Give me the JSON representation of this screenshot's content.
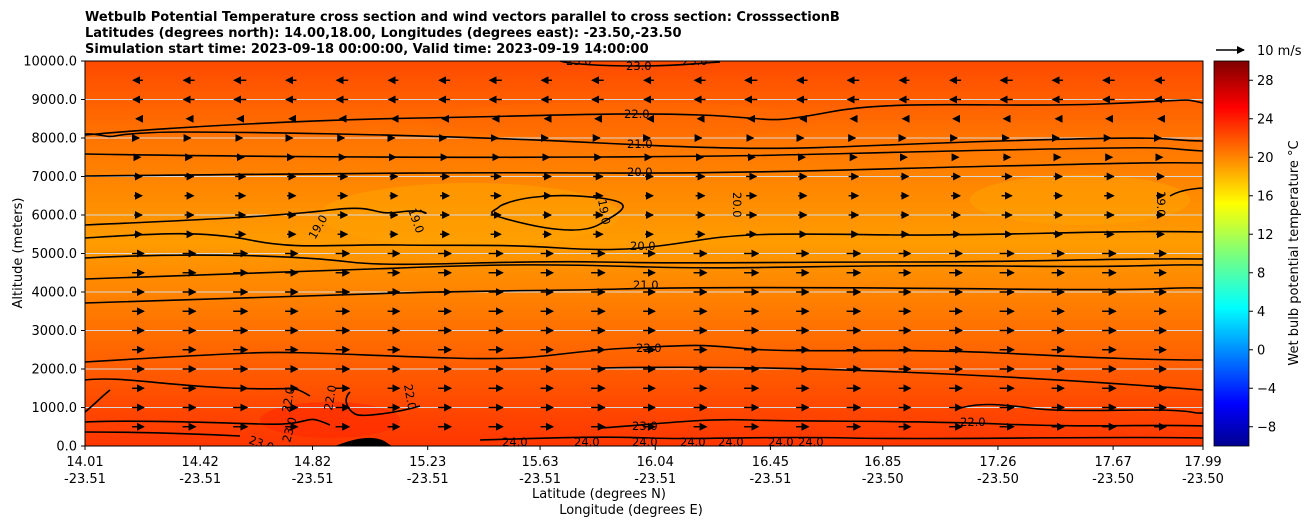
{
  "chart_data": {
    "type": "heatmap",
    "title_lines": [
      "Wetbulb Potential Temperature cross section and wind vectors parallel to cross section: CrosssectionB",
      "Latitudes (degrees north): 14.00,18.00, Longitudes (degrees east): -23.50,-23.50",
      "Simulation start time: 2023-09-18 00:00:00, Valid time: 2023-09-19 14:00:00"
    ],
    "xlabel_lines": [
      "Latitude (degrees N)",
      "Longitude (degrees E)"
    ],
    "ylabel": "Altitude (meters)",
    "x_ticks": [
      {
        "lat": "14.01",
        "lon": "-23.51"
      },
      {
        "lat": "14.42",
        "lon": "-23.51"
      },
      {
        "lat": "14.82",
        "lon": "-23.51"
      },
      {
        "lat": "15.23",
        "lon": "-23.51"
      },
      {
        "lat": "15.63",
        "lon": "-23.51"
      },
      {
        "lat": "16.04",
        "lon": "-23.51"
      },
      {
        "lat": "16.45",
        "lon": "-23.51"
      },
      {
        "lat": "16.85",
        "lon": "-23.50"
      },
      {
        "lat": "17.26",
        "lon": "-23.50"
      },
      {
        "lat": "17.67",
        "lon": "-23.50"
      },
      {
        "lat": "17.99",
        "lon": "-23.50"
      }
    ],
    "xlim": [
      14.01,
      17.99
    ],
    "ylim": [
      0,
      10000
    ],
    "y_ticks": [
      "0.0",
      "1000.0",
      "2000.0",
      "3000.0",
      "4000.0",
      "5000.0",
      "6000.0",
      "7000.0",
      "8000.0",
      "9000.0",
      "10000.0"
    ],
    "y_tick_values": [
      0,
      1000,
      2000,
      3000,
      4000,
      5000,
      6000,
      7000,
      8000,
      9000,
      10000
    ],
    "grid": "horizontal",
    "colorbar": {
      "label": "Wet bulb potential temperature $^\\circ$C",
      "label_display": "Wet bulb potential temperature °C",
      "ticks": [
        "−8",
        "−4",
        "0",
        "4",
        "8",
        "12",
        "16",
        "20",
        "24",
        "28"
      ],
      "tick_values": [
        -8,
        -4,
        0,
        4,
        8,
        12,
        16,
        20,
        24,
        28
      ],
      "range": [
        -10,
        30
      ],
      "colormap": "jet"
    },
    "wind_key": {
      "label": "10 m/s",
      "value_ms": 10
    },
    "contours": [
      {
        "level": 19,
        "labels": [
          "19.0",
          "19.0",
          "19.0",
          "19.0"
        ]
      },
      {
        "level": 20,
        "labels": [
          "20.0",
          "20.0",
          "20.0"
        ]
      },
      {
        "level": 21,
        "labels": [
          "21.0",
          "21.0"
        ]
      },
      {
        "level": 22,
        "labels": [
          "22.0",
          "22.0",
          "22.0",
          "22.0",
          "22.0",
          "22.0",
          "22.0"
        ]
      },
      {
        "level": 23,
        "labels": [
          "23.0",
          "23.0",
          "23.0",
          "23.0",
          "23.0",
          "23.0"
        ]
      },
      {
        "level": 24,
        "labels": [
          "24.0",
          "24.0",
          "24.0",
          "24.0",
          "24.0",
          "24.0",
          "24.0"
        ]
      }
    ],
    "wind_vectors": "rows every 500 m; westward at 9000–10000 m, near calm at 8000–8500 m, eastward from 7500 m down to 500 m"
  }
}
